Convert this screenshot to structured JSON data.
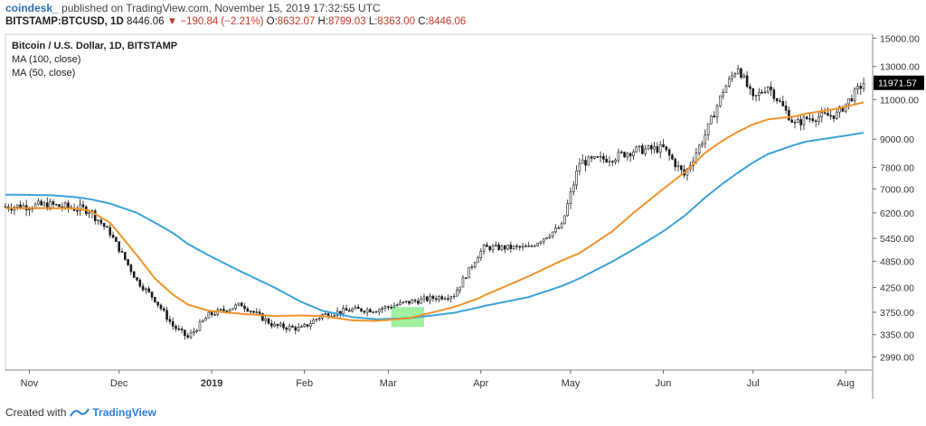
{
  "header": {
    "author": "coindesk_",
    "published": "published on TradingView.com, November 15, 2019 17:32:55 UTC",
    "symbol": "BITSTAMP:BTCUSD, 1D",
    "last": "8446.06",
    "change_arrow": "▼",
    "change": "−190.84 (−2.21%)",
    "o_label": "O:",
    "o": "8632.07",
    "h_label": "H:",
    "h": "8799.03",
    "l_label": "L:",
    "l": "8363.00",
    "c_label": "C:",
    "c": "8446.06"
  },
  "legend": {
    "title": "Bitcoin / U.S. Dollar, 1D, BITSTAMP",
    "ma100": "MA (100, close)",
    "ma50": "MA (50, close)"
  },
  "footer": {
    "created_with": "Created with",
    "brand": "TradingView"
  },
  "colors": {
    "candle": "#1a1a1a",
    "ma50": "#f0932b",
    "ma100": "#3aa3d9",
    "highlight": "#90ee90",
    "price_tag": "#000000"
  },
  "chart_data": {
    "type": "line",
    "title": "Bitcoin / U.S. Dollar, 1D, BITSTAMP",
    "y_scale": "log",
    "ylim": [
      2800,
      15300
    ],
    "y_ticks": [
      15000.0,
      13000.0,
      11000.0,
      9000.0,
      7800.0,
      7000.0,
      6200.0,
      5450.0,
      4850.0,
      4250.0,
      3750.0,
      3350.0,
      2990.0
    ],
    "x_ticks": [
      "Nov",
      "Dec",
      "2019",
      "Feb",
      "Mar",
      "Apr",
      "May",
      "Jun",
      "Jul",
      "Aug"
    ],
    "x_tick_days": [
      8,
      38,
      69,
      100,
      128,
      159,
      189,
      220,
      250,
      281
    ],
    "last_price_label": "11971.57",
    "last_price": 11971.57,
    "highlight_days": [
      129,
      140
    ],
    "x_days": [
      0,
      15,
      23,
      28,
      35,
      44,
      50,
      56,
      61,
      68,
      79,
      90,
      99,
      106,
      116,
      124,
      135,
      150,
      158,
      160,
      175,
      186,
      192,
      203,
      210,
      220,
      227,
      234,
      240,
      245,
      250,
      255,
      264,
      268,
      278,
      287
    ],
    "series": [
      {
        "name": "MA (100, close)",
        "values": [
          6800,
          6780,
          6720,
          6650,
          6500,
          6200,
          5900,
          5600,
          5300,
          5000,
          4600,
          4250,
          3950,
          3780,
          3660,
          3620,
          3640,
          3740,
          3840,
          3870,
          4050,
          4280,
          4450,
          4850,
          5150,
          5650,
          6100,
          6700,
          7200,
          7600,
          8000,
          8350,
          8750,
          8900,
          9100,
          9300
        ]
      },
      {
        "name": "MA (50, close)",
        "values": [
          6350,
          6350,
          6340,
          6280,
          5900,
          5000,
          4450,
          4100,
          3900,
          3780,
          3720,
          3680,
          3690,
          3680,
          3600,
          3590,
          3640,
          3850,
          4020,
          4080,
          4500,
          4870,
          5060,
          5650,
          6200,
          7000,
          7600,
          8400,
          8950,
          9350,
          9700,
          9950,
          10100,
          10250,
          10500,
          10850
        ]
      },
      {
        "name": "BTCUSD close",
        "values": [
          6400,
          6450,
          6350,
          6300,
          5600,
          4400,
          4000,
          3500,
          3300,
          3700,
          3900,
          3500,
          3450,
          3700,
          3800,
          3800,
          3950,
          4100,
          5000,
          5200,
          5200,
          5800,
          8000,
          8200,
          8500,
          8600,
          7500,
          9200,
          11500,
          13000,
          11000,
          11800,
          9700,
          10000,
          10200,
          11971.57
        ]
      }
    ]
  }
}
